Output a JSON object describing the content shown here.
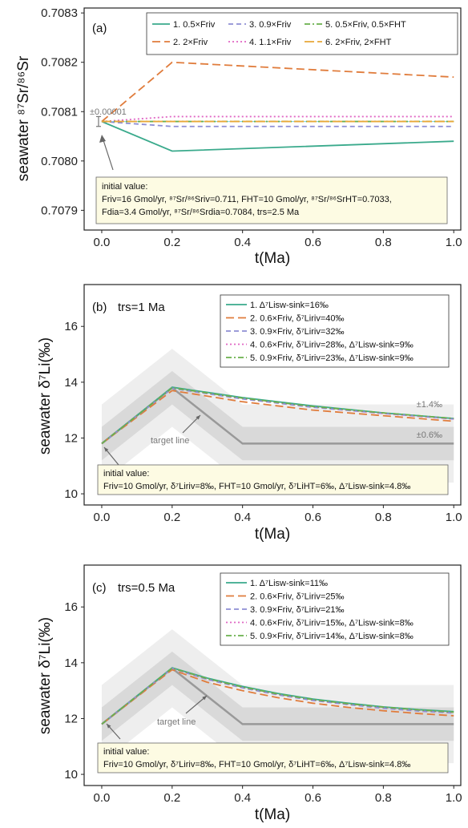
{
  "chart_data": [
    {
      "type": "line",
      "panel_label": "(a)",
      "xlabel": "t(Ma)",
      "ylabel": "seawater ⁸⁷Sr/⁸⁶Sr",
      "xlim": [
        -0.05,
        1.02
      ],
      "ylim": [
        0.70786,
        0.70831
      ],
      "xticks": [
        "0.0",
        "0.2",
        "0.4",
        "0.6",
        "0.8",
        "1.0"
      ],
      "yticks": [
        "0.7079",
        "0.7080",
        "0.7081",
        "0.7082",
        "0.7083"
      ],
      "error_label": "±0.00001",
      "legend_position": "top-right",
      "series": [
        {
          "name": "1. 0.5×Friv",
          "color": "#3aaa8c",
          "dash": "solid",
          "x": [
            0,
            0.2,
            1.0
          ],
          "y": [
            0.70808,
            0.70802,
            0.70804
          ]
        },
        {
          "name": "2. 2×Friv",
          "color": "#e07c3c",
          "dash": "long",
          "x": [
            0,
            0.2,
            1.0
          ],
          "y": [
            0.70808,
            0.7082,
            0.70817
          ]
        },
        {
          "name": "3. 0.9×Friv",
          "color": "#8e8ed4",
          "dash": "dash",
          "x": [
            0,
            0.2,
            1.0
          ],
          "y": [
            0.70808,
            0.70807,
            0.70807
          ]
        },
        {
          "name": "4. 1.1×Friv",
          "color": "#e066c4",
          "dash": "dot",
          "x": [
            0,
            0.2,
            1.0
          ],
          "y": [
            0.70808,
            0.70809,
            0.70809
          ]
        },
        {
          "name": "5. 0.5×Friv, 0.5×FHT",
          "color": "#6ab04c",
          "dash": "dashdot",
          "x": [
            0,
            0.2,
            1.0
          ],
          "y": [
            0.70808,
            0.70808,
            0.70808
          ]
        },
        {
          "name": "6. 2×Friv, 2×FHT",
          "color": "#e8a838",
          "dash": "longdash",
          "x": [
            0,
            0.2,
            1.0
          ],
          "y": [
            0.70808,
            0.70808,
            0.70808
          ]
        }
      ],
      "annotation": {
        "title": "initial value:",
        "line1": "Friv=16 Gmol/yr, ⁸⁷Sr/⁸⁶Sriv=0.711, FHT=10 Gmol/yr, ⁸⁷Sr/⁸⁶SrHT=0.7033,",
        "line2": "Fdia=3.4 Gmol/yr, ⁸⁷Sr/⁸⁶Srdia=0.7084, trs=2.5 Ma"
      }
    },
    {
      "type": "line",
      "panel_label": "(b)",
      "panel_title": "trs=1 Ma",
      "xlabel": "t(Ma)",
      "ylabel": "seawater δ⁷Li(‰)",
      "xlim": [
        -0.05,
        1.02
      ],
      "ylim": [
        9.6,
        17.5
      ],
      "xticks": [
        "0.0",
        "0.2",
        "0.4",
        "0.6",
        "0.8",
        "1.0"
      ],
      "yticks": [
        "10",
        "12",
        "14",
        "16"
      ],
      "band_labels": [
        "±1.4‰",
        "±0.6‰"
      ],
      "target_label": "target line",
      "target_line": {
        "x": [
          0,
          0.2,
          0.4,
          1.0
        ],
        "y": [
          11.8,
          13.8,
          11.8,
          11.8
        ]
      },
      "legend_position": "top-right",
      "series": [
        {
          "name": "1. Δ⁷Lisw-sink=16‰",
          "color": "#3aaa8c",
          "dash": "solid",
          "x": [
            0,
            0.2,
            0.4,
            0.6,
            0.8,
            1.0
          ],
          "y": [
            11.8,
            13.82,
            13.45,
            13.15,
            12.9,
            12.7
          ]
        },
        {
          "name": "2. 0.6×Friv, δ⁷Liriv=40‰",
          "color": "#e07c3c",
          "dash": "long",
          "x": [
            0,
            0.2,
            0.4,
            0.6,
            0.8,
            1.0
          ],
          "y": [
            11.8,
            13.7,
            13.3,
            13.0,
            12.8,
            12.6
          ]
        },
        {
          "name": "3. 0.9×Friv, δ⁷Liriv=32‰",
          "color": "#8e8ed4",
          "dash": "dash",
          "x": [
            0,
            0.2,
            0.4,
            0.6,
            0.8,
            1.0
          ],
          "y": [
            11.8,
            13.78,
            13.4,
            13.1,
            12.88,
            12.68
          ]
        },
        {
          "name": "4. 0.6×Friv, δ⁷Liriv=28‰, Δ⁷Lisw-sink=9‰",
          "color": "#e066c4",
          "dash": "dot",
          "x": [
            0,
            0.2,
            0.4,
            0.6,
            0.8,
            1.0
          ],
          "y": [
            11.8,
            13.8,
            13.42,
            13.12,
            12.88,
            12.68
          ]
        },
        {
          "name": "5. 0.9×Friv, δ⁷Liriv=23‰, Δ⁷Lisw-sink=9‰",
          "color": "#6ab04c",
          "dash": "dashdot",
          "x": [
            0,
            0.2,
            0.4,
            0.6,
            0.8,
            1.0
          ],
          "y": [
            11.8,
            13.8,
            13.43,
            13.13,
            12.9,
            12.7
          ]
        }
      ],
      "annotation": {
        "title": "initial value:",
        "line1": "Friv=10 Gmol/yr, δ⁷Liriv=8‰, FHT=10 Gmol/yr, δ⁷LiHT=6‰, Δ⁷Lisw-sink=4.8‰"
      }
    },
    {
      "type": "line",
      "panel_label": "(c)",
      "panel_title": "trs=0.5 Ma",
      "xlabel": "t(Ma)",
      "ylabel": "seawater δ⁷Li(‰)",
      "xlim": [
        -0.05,
        1.02
      ],
      "ylim": [
        9.6,
        17.5
      ],
      "xticks": [
        "0.0",
        "0.2",
        "0.4",
        "0.6",
        "0.8",
        "1.0"
      ],
      "yticks": [
        "10",
        "12",
        "14",
        "16"
      ],
      "target_label": "target line",
      "target_line": {
        "x": [
          0,
          0.2,
          0.4,
          1.0
        ],
        "y": [
          11.8,
          13.8,
          11.8,
          11.8
        ]
      },
      "legend_position": "top-right",
      "series": [
        {
          "name": "1. Δ⁷Lisw-sink=11‰",
          "color": "#3aaa8c",
          "dash": "solid",
          "x": [
            0,
            0.2,
            0.3,
            0.4,
            0.5,
            0.6,
            0.7,
            0.8,
            0.9,
            1.0
          ],
          "y": [
            11.8,
            13.82,
            13.45,
            13.15,
            12.9,
            12.7,
            12.55,
            12.42,
            12.32,
            12.25
          ]
        },
        {
          "name": "2. 0.6×Friv, δ⁷Liriv=25‰",
          "color": "#e07c3c",
          "dash": "long",
          "x": [
            0,
            0.2,
            0.3,
            0.4,
            0.5,
            0.6,
            0.7,
            0.8,
            0.9,
            1.0
          ],
          "y": [
            11.8,
            13.75,
            13.3,
            13.0,
            12.75,
            12.55,
            12.4,
            12.28,
            12.18,
            12.1
          ]
        },
        {
          "name": "3. 0.9×Friv, δ⁷Liriv=21‰",
          "color": "#8e8ed4",
          "dash": "dash",
          "x": [
            0,
            0.2,
            0.3,
            0.4,
            0.5,
            0.6,
            0.7,
            0.8,
            0.9,
            1.0
          ],
          "y": [
            11.8,
            13.8,
            13.4,
            13.1,
            12.85,
            12.65,
            12.5,
            12.37,
            12.27,
            12.2
          ]
        },
        {
          "name": "4. 0.6×Friv, δ⁷Liriv=15‰, Δ⁷Lisw-sink=8‰",
          "color": "#e066c4",
          "dash": "dot",
          "x": [
            0,
            0.2,
            0.3,
            0.4,
            0.5,
            0.6,
            0.7,
            0.8,
            0.9,
            1.0
          ],
          "y": [
            11.8,
            13.8,
            13.42,
            13.12,
            12.87,
            12.67,
            12.52,
            12.4,
            12.3,
            12.22
          ]
        },
        {
          "name": "5. 0.9×Friv, δ⁷Liriv=14‰, Δ⁷Lisw-sink=8‰",
          "color": "#6ab04c",
          "dash": "dashdot",
          "x": [
            0,
            0.2,
            0.3,
            0.4,
            0.5,
            0.6,
            0.7,
            0.8,
            0.9,
            1.0
          ],
          "y": [
            11.8,
            13.81,
            13.43,
            13.13,
            12.88,
            12.68,
            12.53,
            12.41,
            12.31,
            12.23
          ]
        }
      ],
      "annotation": {
        "title": "initial value:",
        "line1": "Friv=10 Gmol/yr, δ⁷Liriv=8‰, FHT=10 Gmol/yr, δ⁷LiHT=6‰, Δ⁷Lisw-sink=4.8‰"
      }
    }
  ]
}
